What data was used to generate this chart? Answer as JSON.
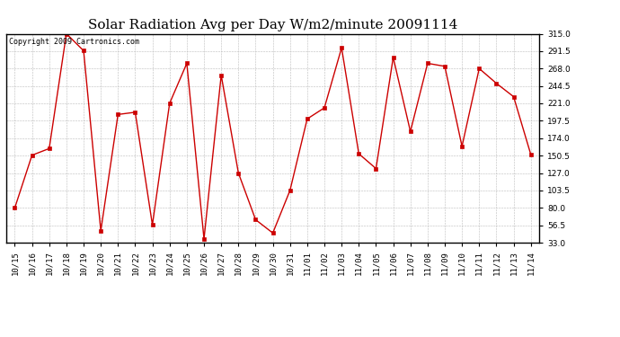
{
  "title": "Solar Radiation Avg per Day W/m2/minute 20091114",
  "copyright": "Copyright 2009 Cartronics.com",
  "x_labels": [
    "10/15",
    "10/16",
    "10/17",
    "10/18",
    "10/19",
    "10/20",
    "10/21",
    "10/22",
    "10/23",
    "10/24",
    "10/25",
    "10/26",
    "10/27",
    "10/28",
    "10/29",
    "10/30",
    "10/31",
    "11/01",
    "11/02",
    "11/03",
    "11/04",
    "11/05",
    "11/06",
    "11/07",
    "11/08",
    "11/09",
    "11/10",
    "11/11",
    "11/12",
    "11/13",
    "11/14"
  ],
  "values": [
    80.0,
    151.0,
    160.0,
    315.0,
    292.0,
    49.0,
    206.0,
    209.0,
    57.0,
    221.0,
    275.0,
    38.0,
    259.0,
    127.0,
    64.0,
    46.0,
    103.5,
    200.0,
    215.0,
    296.0,
    153.0,
    133.0,
    283.0,
    183.0,
    275.0,
    271.0,
    163.0,
    268.0,
    248.0,
    230.0,
    152.0
  ],
  "line_color": "#cc0000",
  "marker_color": "#cc0000",
  "bg_color": "#ffffff",
  "grid_color": "#bbbbbb",
  "ylim_min": 33.0,
  "ylim_max": 315.0,
  "yticks": [
    33.0,
    56.5,
    80.0,
    103.5,
    127.0,
    150.5,
    174.0,
    197.5,
    221.0,
    244.5,
    268.0,
    291.5,
    315.0
  ],
  "title_fontsize": 11,
  "tick_fontsize": 6.5,
  "copyright_fontsize": 6
}
